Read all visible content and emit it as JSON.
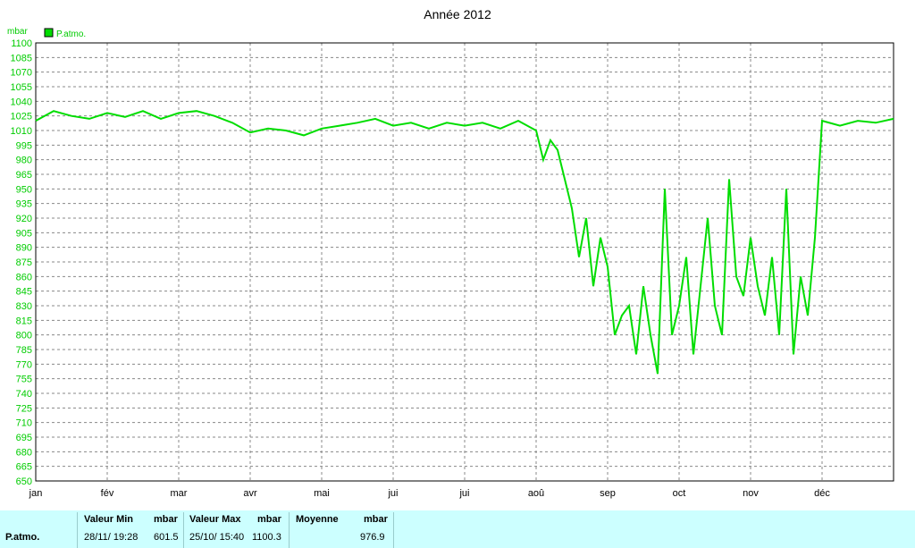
{
  "chart_data": {
    "type": "line",
    "title": "Année 2012",
    "ylabel": "mbar",
    "ylim": [
      650,
      1100
    ],
    "yticks": [
      1100,
      1085,
      1070,
      1055,
      1040,
      1025,
      1010,
      995,
      980,
      965,
      950,
      935,
      920,
      905,
      890,
      875,
      860,
      845,
      830,
      815,
      800,
      785,
      770,
      755,
      740,
      725,
      710,
      695,
      680,
      665,
      650
    ],
    "xticks": [
      "jan",
      "fév",
      "mar",
      "avr",
      "mai",
      "jui",
      "jui",
      "aoû",
      "sep",
      "oct",
      "nov",
      "déc"
    ],
    "grid": true,
    "legend": "top-left",
    "series": [
      {
        "name": "P.atmo.",
        "color": "#00dd00",
        "x_month": [
          0,
          0.25,
          0.5,
          0.75,
          1,
          1.25,
          1.5,
          1.75,
          2,
          2.25,
          2.5,
          2.75,
          3,
          3.25,
          3.5,
          3.75,
          4,
          4.25,
          4.5,
          4.75,
          5,
          5.25,
          5.5,
          5.75,
          6,
          6.25,
          6.5,
          6.75,
          7,
          7.1,
          7.2,
          7.3,
          7.4,
          7.5,
          7.6,
          7.7,
          7.8,
          7.9,
          8.0,
          8.1,
          8.2,
          8.3,
          8.4,
          8.5,
          8.6,
          8.7,
          8.8,
          8.9,
          9.0,
          9.1,
          9.2,
          9.3,
          9.4,
          9.5,
          9.6,
          9.7,
          9.8,
          9.9,
          10.0,
          10.1,
          10.2,
          10.3,
          10.4,
          10.5,
          10.6,
          10.7,
          10.8,
          10.9,
          11.0,
          11.25,
          11.5,
          11.75,
          12
        ],
        "values": [
          1020,
          1030,
          1025,
          1022,
          1028,
          1024,
          1030,
          1022,
          1028,
          1030,
          1025,
          1018,
          1008,
          1012,
          1010,
          1005,
          1012,
          1015,
          1018,
          1022,
          1015,
          1018,
          1012,
          1018,
          1015,
          1018,
          1012,
          1020,
          1010,
          980,
          1000,
          990,
          960,
          930,
          880,
          920,
          850,
          900,
          870,
          800,
          820,
          830,
          780,
          850,
          800,
          760,
          950,
          800,
          830,
          880,
          780,
          850,
          920,
          830,
          800,
          960,
          860,
          840,
          900,
          850,
          820,
          880,
          800,
          950,
          780,
          860,
          820,
          900,
          1020,
          1015,
          1020,
          1018,
          1022
        ]
      }
    ]
  },
  "stats": {
    "series_label": "P.atmo.",
    "min_label": "Valeur Min",
    "min_unit": "mbar",
    "min_date": "28/11/  19:28",
    "min_value": "601.5",
    "max_label": "Valeur Max",
    "max_unit": "mbar",
    "max_date": "25/10/  15:40",
    "max_value": "1100.3",
    "mean_label": "Moyenne",
    "mean_unit": "mbar",
    "mean_value": "976.9"
  }
}
